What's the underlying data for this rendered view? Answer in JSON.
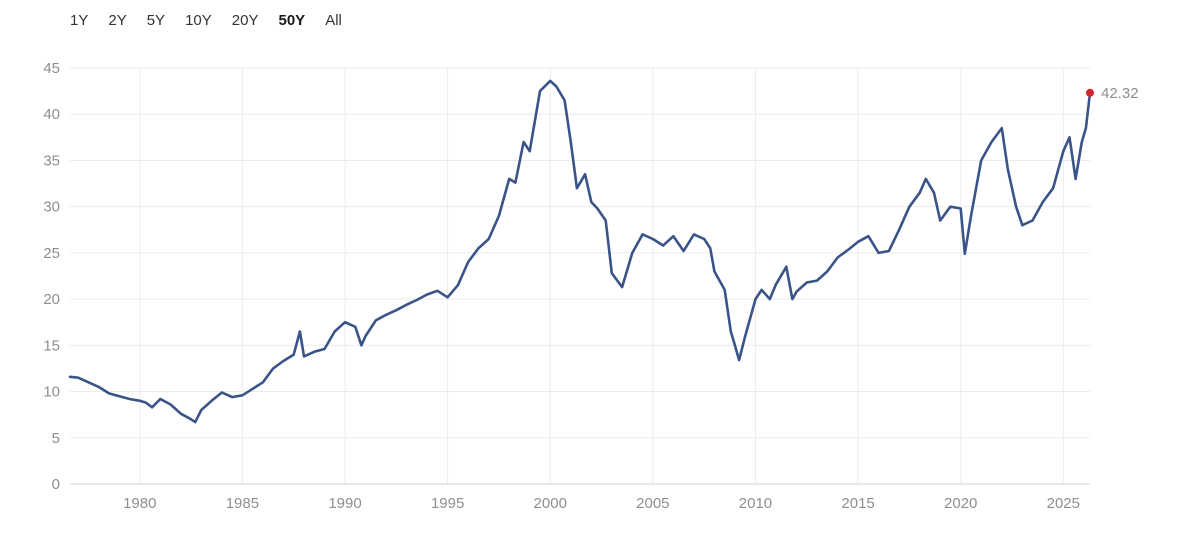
{
  "range_selector": {
    "options": [
      "1Y",
      "2Y",
      "5Y",
      "10Y",
      "20Y",
      "50Y",
      "All"
    ],
    "active": "50Y"
  },
  "colors": {
    "line": "#3a5488",
    "last_point": "#d1242f",
    "grid": "#ececec",
    "axis": "#d0d0d0",
    "tick_text": "#8f8f8f"
  },
  "chart_data": {
    "type": "line",
    "title": "",
    "xlabel": "",
    "ylabel": "",
    "xlim": [
      1976.6,
      2026.3
    ],
    "ylim": [
      0,
      45
    ],
    "yticks": [
      0,
      5,
      10,
      15,
      20,
      25,
      30,
      35,
      40,
      45
    ],
    "xticks": [
      1980,
      1985,
      1990,
      1995,
      2000,
      2005,
      2010,
      2015,
      2020,
      2025
    ],
    "grid": true,
    "last_value_label": "42.32",
    "series": [
      {
        "x": [
          1976.6,
          1977.0,
          1977.5,
          1978.0,
          1978.5,
          1979.0,
          1979.5,
          1980.0,
          1980.3,
          1980.6,
          1981.0,
          1981.5,
          1982.0,
          1982.5,
          1982.7,
          1983.0,
          1983.5,
          1984.0,
          1984.5,
          1985.0,
          1985.5,
          1986.0,
          1986.5,
          1987.0,
          1987.5,
          1987.8,
          1988.0,
          1988.5,
          1989.0,
          1989.5,
          1990.0,
          1990.5,
          1990.8,
          1991.0,
          1991.5,
          1992.0,
          1992.5,
          1993.0,
          1993.5,
          1994.0,
          1994.5,
          1995.0,
          1995.5,
          1996.0,
          1996.5,
          1997.0,
          1997.5,
          1998.0,
          1998.3,
          1998.7,
          1999.0,
          1999.5,
          2000.0,
          2000.3,
          2000.7,
          2001.0,
          2001.3,
          2001.7,
          2002.0,
          2002.3,
          2002.7,
          2003.0,
          2003.5,
          2004.0,
          2004.5,
          2005.0,
          2005.5,
          2006.0,
          2006.5,
          2007.0,
          2007.5,
          2007.8,
          2008.0,
          2008.5,
          2008.8,
          2009.0,
          2009.2,
          2009.5,
          2010.0,
          2010.3,
          2010.7,
          2011.0,
          2011.5,
          2011.8,
          2012.0,
          2012.5,
          2013.0,
          2013.5,
          2014.0,
          2014.5,
          2015.0,
          2015.5,
          2016.0,
          2016.5,
          2017.0,
          2017.5,
          2018.0,
          2018.3,
          2018.7,
          2019.0,
          2019.5,
          2020.0,
          2020.2,
          2020.5,
          2021.0,
          2021.5,
          2022.0,
          2022.3,
          2022.7,
          2023.0,
          2023.5,
          2024.0,
          2024.5,
          2025.0,
          2025.3,
          2025.6,
          2025.9,
          2026.1,
          2026.3
        ],
        "values": [
          11.6,
          11.5,
          11.0,
          10.5,
          9.8,
          9.5,
          9.2,
          9.0,
          8.8,
          8.3,
          9.2,
          8.6,
          7.6,
          7.0,
          6.7,
          8.0,
          9.0,
          9.9,
          9.4,
          9.6,
          10.3,
          11.0,
          12.5,
          13.3,
          14.0,
          16.5,
          13.8,
          14.3,
          14.6,
          16.5,
          17.5,
          17.0,
          15.0,
          16.0,
          17.7,
          18.3,
          18.8,
          19.4,
          19.9,
          20.5,
          20.9,
          20.2,
          21.5,
          24.0,
          25.5,
          26.5,
          29.0,
          33.0,
          32.6,
          37.0,
          36.0,
          42.5,
          43.6,
          43.0,
          41.5,
          37.0,
          32.0,
          33.5,
          30.5,
          29.8,
          28.5,
          22.8,
          21.3,
          25.0,
          27.0,
          26.5,
          25.8,
          26.8,
          25.2,
          27.0,
          26.5,
          25.5,
          23.0,
          21.0,
          16.5,
          15.0,
          13.4,
          16.0,
          20.0,
          21.0,
          20.0,
          21.6,
          23.5,
          20.0,
          20.8,
          21.8,
          22.0,
          23.0,
          24.5,
          25.3,
          26.2,
          26.8,
          25.0,
          25.2,
          27.5,
          30.0,
          31.5,
          33.0,
          31.5,
          28.5,
          30.0,
          29.8,
          24.9,
          29.0,
          35.0,
          37.0,
          38.5,
          34.0,
          30.0,
          28.0,
          28.5,
          30.5,
          32.0,
          36.0,
          37.5,
          33.0,
          37.0,
          38.5,
          42.32
        ]
      }
    ]
  }
}
